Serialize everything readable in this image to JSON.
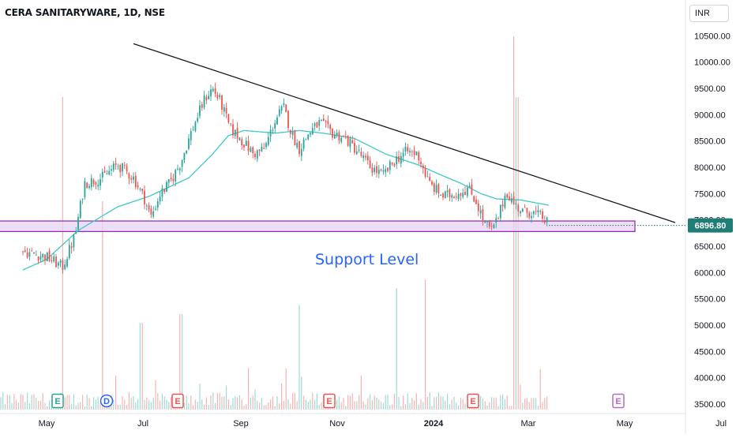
{
  "header": {
    "title": "CERA SANITARYWARE, 1D, NSE",
    "currency": "INR"
  },
  "annotation": {
    "text": "Support Level"
  },
  "colors": {
    "up": "#26a69a",
    "down": "#ef5350",
    "ma": "#3ec9c9",
    "trendline": "#131722",
    "zone_fill": "#e7d3f5",
    "zone_border": "#8e24aa",
    "price_badge": "#1f7d76"
  },
  "chart_data": {
    "type": "candlestick",
    "symbol": "CERA SANITARYWARE",
    "interval": "1D",
    "exchange": "NSE",
    "y_axis": {
      "currency": "INR",
      "range": [
        3350,
        10900
      ],
      "ticks": [
        "10500.00",
        "10000.00",
        "9500.00",
        "9000.00",
        "8500.00",
        "8000.00",
        "7500.00",
        "7000.00",
        "6500.00",
        "6000.00",
        "5500.00",
        "5000.00",
        "4500.00",
        "4000.00",
        "3500.00"
      ]
    },
    "x_axis": {
      "ticks": [
        {
          "label": "May",
          "day": 0
        },
        {
          "label": "Jul",
          "day": 61
        },
        {
          "label": "Sep",
          "day": 123
        },
        {
          "label": "Nov",
          "day": 184
        },
        {
          "label": "2024",
          "day": 245
        },
        {
          "label": "Mar",
          "day": 305
        },
        {
          "label": "May",
          "day": 366
        },
        {
          "label": "Jul",
          "day": 427
        }
      ]
    },
    "last_price": "6896.80",
    "price_anchors": [
      [
        -15,
        6400
      ],
      [
        0,
        6300
      ],
      [
        10,
        6100
      ],
      [
        18,
        6700
      ],
      [
        24,
        7700
      ],
      [
        35,
        7800
      ],
      [
        45,
        8050
      ],
      [
        55,
        7800
      ],
      [
        62,
        7400
      ],
      [
        66,
        7050
      ],
      [
        72,
        7500
      ],
      [
        78,
        7700
      ],
      [
        85,
        8100
      ],
      [
        92,
        8700
      ],
      [
        100,
        9300
      ],
      [
        105,
        9500
      ],
      [
        110,
        9250
      ],
      [
        116,
        8750
      ],
      [
        124,
        8500
      ],
      [
        131,
        8250
      ],
      [
        138,
        8350
      ],
      [
        144,
        8850
      ],
      [
        150,
        9150
      ],
      [
        155,
        8650
      ],
      [
        160,
        8350
      ],
      [
        166,
        8650
      ],
      [
        173,
        8850
      ],
      [
        181,
        8650
      ],
      [
        189,
        8550
      ],
      [
        197,
        8300
      ],
      [
        205,
        8000
      ],
      [
        213,
        7850
      ],
      [
        221,
        8150
      ],
      [
        228,
        8300
      ],
      [
        235,
        8250
      ],
      [
        242,
        7700
      ],
      [
        251,
        7450
      ],
      [
        259,
        7500
      ],
      [
        267,
        7600
      ],
      [
        272,
        7350
      ],
      [
        277,
        6950
      ],
      [
        282,
        6800
      ],
      [
        286,
        7050
      ],
      [
        291,
        7550
      ],
      [
        296,
        7300
      ],
      [
        302,
        7150
      ],
      [
        307,
        7150
      ],
      [
        314,
        7050
      ],
      [
        318,
        6900
      ]
    ],
    "moving_average_anchors": [
      [
        -15,
        6050
      ],
      [
        0,
        6250
      ],
      [
        20,
        6800
      ],
      [
        45,
        7250
      ],
      [
        65,
        7450
      ],
      [
        90,
        7800
      ],
      [
        105,
        8250
      ],
      [
        115,
        8600
      ],
      [
        125,
        8700
      ],
      [
        145,
        8650
      ],
      [
        160,
        8700
      ],
      [
        175,
        8650
      ],
      [
        195,
        8550
      ],
      [
        215,
        8250
      ],
      [
        235,
        8050
      ],
      [
        250,
        7850
      ],
      [
        262,
        7700
      ],
      [
        275,
        7500
      ],
      [
        285,
        7400
      ],
      [
        300,
        7380
      ],
      [
        318,
        7280
      ]
    ],
    "trendline": {
      "start": {
        "day": 55,
        "price": 10350
      },
      "end": {
        "day": 398,
        "price": 6950
      }
    },
    "support_zone": {
      "low": 6780,
      "high": 6980,
      "label": "Support Level"
    },
    "volume_spike_days": [
      [
        10,
        3.6
      ],
      [
        35,
        2.4
      ],
      [
        60,
        1.0
      ],
      [
        85,
        1.1
      ],
      [
        160,
        1.2
      ],
      [
        222,
        1.4
      ],
      [
        240,
        1.5
      ],
      [
        296,
        4.3
      ],
      [
        298,
        3.6
      ]
    ],
    "events": [
      {
        "label": "E",
        "kind": "earnings",
        "day": 7
      },
      {
        "label": "D",
        "kind": "dividend",
        "day": 38
      },
      {
        "label": "E",
        "kind": "earnings",
        "day": 83
      },
      {
        "label": "E",
        "kind": "earnings",
        "day": 179
      },
      {
        "label": "E",
        "kind": "earnings",
        "day": 270
      },
      {
        "label": "E",
        "kind": "upcoming-earnings",
        "day": 362
      }
    ]
  }
}
